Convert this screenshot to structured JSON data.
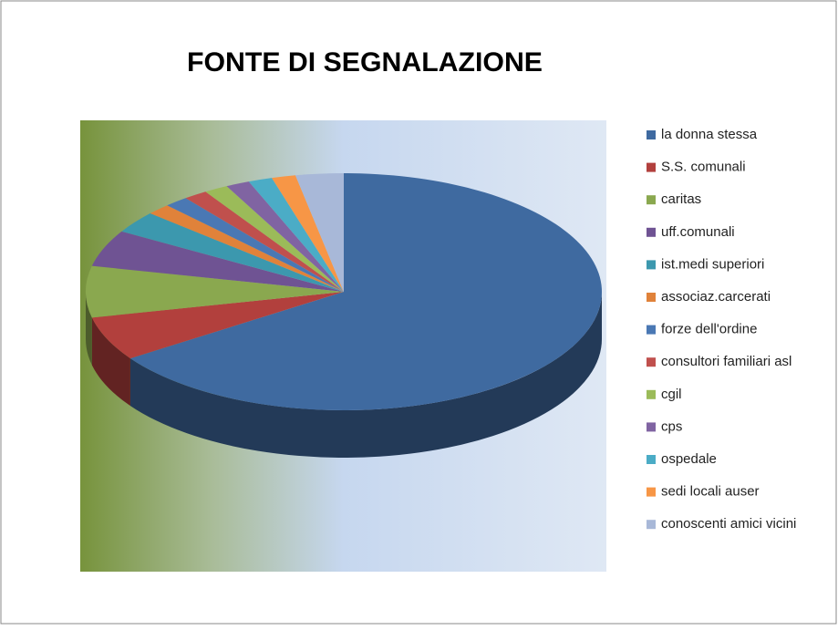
{
  "chart_data": {
    "type": "pie3d",
    "title": "FONTE DI SEGNALAZIONE",
    "categories": [
      "la donna stessa",
      "S.S. comunali",
      "caritas",
      "uff.comunali",
      "ist.medi superiori",
      "associaz.carcerati",
      "forze dell'ordine",
      "consultori familiari asl",
      "cgil",
      "cps",
      "ospedale",
      "sedi locali auser",
      "conoscenti amici vicini"
    ],
    "values": [
      65.5,
      6,
      7,
      5,
      3,
      1.5,
      1.5,
      1.5,
      1.5,
      1.5,
      1.5,
      1.5,
      3
    ],
    "colors": [
      "#3f6aa0",
      "#b2403d",
      "#8aa84f",
      "#6f5393",
      "#3c98ae",
      "#e0823a",
      "#4a78b4",
      "#c0504d",
      "#9bbb59",
      "#8064a2",
      "#4bacc6",
      "#f79646",
      "#a8b8d8"
    ],
    "legend": "right"
  }
}
